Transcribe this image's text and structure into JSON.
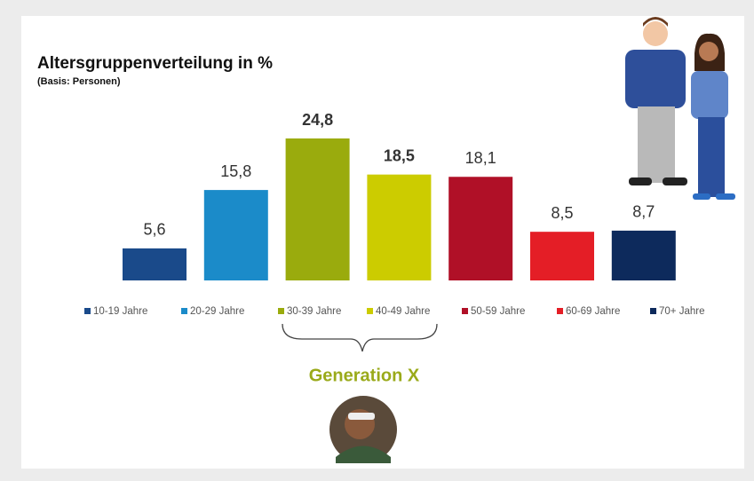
{
  "chart_data": {
    "type": "bar",
    "title": "Altersgruppenverteilung in %",
    "subtitle": "(Basis: Personen)",
    "categories": [
      "10-19 Jahre",
      "20-29 Jahre",
      "30-39 Jahre",
      "40-49 Jahre",
      "50-59 Jahre",
      "60-69 Jahre",
      "70+ Jahre"
    ],
    "values": [
      5.6,
      15.8,
      24.8,
      18.5,
      18.1,
      8.5,
      8.7
    ],
    "value_labels": [
      "5,6",
      "15,8",
      "24,8",
      "18,5",
      "18,1",
      "8,5",
      "8,7"
    ],
    "colors": [
      "#1a4a8a",
      "#1b8bc9",
      "#9aab0d",
      "#cccc00",
      "#b01027",
      "#e41e26",
      "#0d2a5c"
    ],
    "annotation": "Generation X",
    "legend": "bottom"
  }
}
